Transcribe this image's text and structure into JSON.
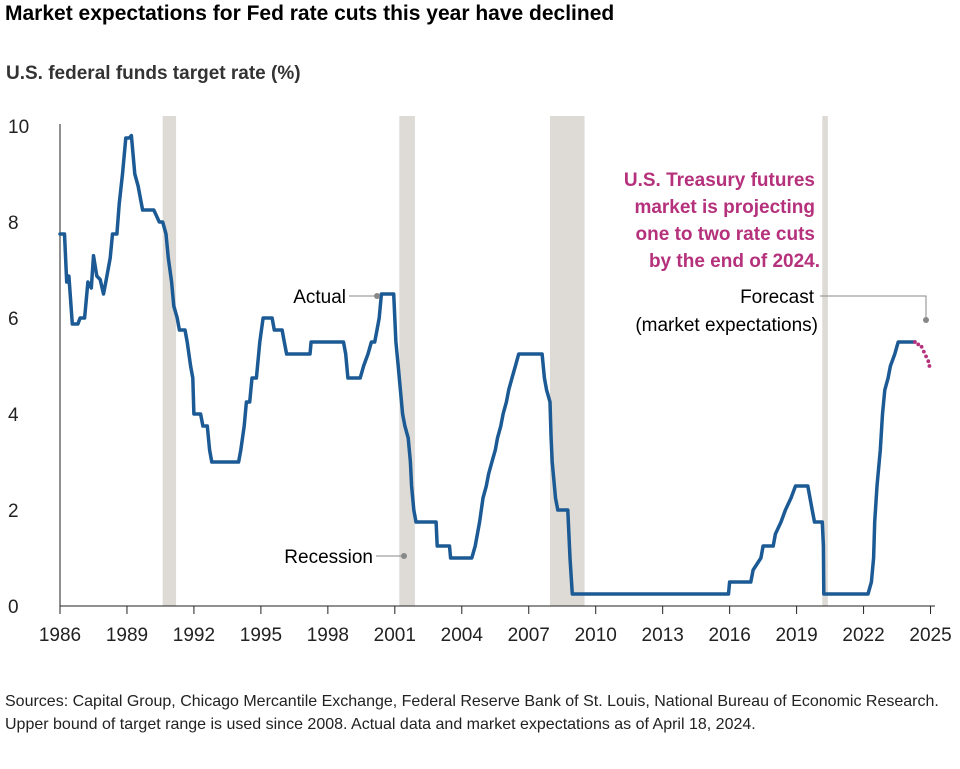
{
  "chart_data": {
    "type": "line",
    "title": "Market expectations for Fed rate cuts this year have declined",
    "ylabel": "U.S. federal funds target rate (%)",
    "xlabel": "",
    "xlim": [
      1986,
      2025.2
    ],
    "ylim": [
      0,
      10
    ],
    "x_ticks": [
      1986,
      1989,
      1992,
      1995,
      1998,
      2001,
      2004,
      2007,
      2010,
      2013,
      2016,
      2019,
      2022,
      2025
    ],
    "y_ticks": [
      0,
      2,
      4,
      6,
      8,
      10
    ],
    "grid": false,
    "recessions": [
      {
        "start": 1990.6,
        "end": 1991.2
      },
      {
        "start": 2001.2,
        "end": 2001.9
      },
      {
        "start": 2007.95,
        "end": 2009.5
      },
      {
        "start": 2020.15,
        "end": 2020.4
      }
    ],
    "series": [
      {
        "name": "Actual",
        "color": "#1b5a94",
        "points": [
          [
            1986.0,
            7.75
          ],
          [
            1986.2,
            7.75
          ],
          [
            1986.3,
            6.75
          ],
          [
            1986.4,
            6.875
          ],
          [
            1986.55,
            5.875
          ],
          [
            1986.8,
            5.875
          ],
          [
            1986.9,
            6.0
          ],
          [
            1987.1,
            6.0
          ],
          [
            1987.25,
            6.75
          ],
          [
            1987.4,
            6.625
          ],
          [
            1987.5,
            7.3
          ],
          [
            1987.65,
            6.875
          ],
          [
            1987.8,
            6.8
          ],
          [
            1987.95,
            6.5
          ],
          [
            1988.05,
            6.75
          ],
          [
            1988.25,
            7.25
          ],
          [
            1988.35,
            7.75
          ],
          [
            1988.55,
            7.75
          ],
          [
            1988.65,
            8.375
          ],
          [
            1988.8,
            9.0
          ],
          [
            1988.95,
            9.75
          ],
          [
            1989.1,
            9.75
          ],
          [
            1989.2,
            9.8
          ],
          [
            1989.35,
            9.0
          ],
          [
            1989.5,
            8.75
          ],
          [
            1989.7,
            8.25
          ],
          [
            1989.9,
            8.25
          ],
          [
            1990.2,
            8.25
          ],
          [
            1990.45,
            8.0
          ],
          [
            1990.6,
            8.0
          ],
          [
            1990.75,
            7.75
          ],
          [
            1990.85,
            7.25
          ],
          [
            1991.0,
            6.75
          ],
          [
            1991.1,
            6.25
          ],
          [
            1991.25,
            6.0
          ],
          [
            1991.35,
            5.75
          ],
          [
            1991.6,
            5.75
          ],
          [
            1991.7,
            5.5
          ],
          [
            1991.85,
            5.0
          ],
          [
            1991.95,
            4.75
          ],
          [
            1992.0,
            4.0
          ],
          [
            1992.3,
            4.0
          ],
          [
            1992.4,
            3.75
          ],
          [
            1992.6,
            3.75
          ],
          [
            1992.7,
            3.25
          ],
          [
            1992.8,
            3.0
          ],
          [
            1994.0,
            3.0
          ],
          [
            1994.1,
            3.25
          ],
          [
            1994.25,
            3.75
          ],
          [
            1994.35,
            4.25
          ],
          [
            1994.5,
            4.25
          ],
          [
            1994.6,
            4.75
          ],
          [
            1994.8,
            4.75
          ],
          [
            1994.95,
            5.5
          ],
          [
            1995.1,
            6.0
          ],
          [
            1995.5,
            6.0
          ],
          [
            1995.6,
            5.75
          ],
          [
            1995.95,
            5.75
          ],
          [
            1996.05,
            5.5
          ],
          [
            1996.15,
            5.25
          ],
          [
            1997.2,
            5.25
          ],
          [
            1997.25,
            5.5
          ],
          [
            1998.7,
            5.5
          ],
          [
            1998.8,
            5.25
          ],
          [
            1998.9,
            4.75
          ],
          [
            1999.45,
            4.75
          ],
          [
            1999.6,
            5.0
          ],
          [
            1999.8,
            5.25
          ],
          [
            1999.95,
            5.5
          ],
          [
            2000.1,
            5.5
          ],
          [
            2000.2,
            5.75
          ],
          [
            2000.3,
            6.0
          ],
          [
            2000.4,
            6.5
          ],
          [
            2000.95,
            6.5
          ],
          [
            2001.05,
            5.5
          ],
          [
            2001.15,
            5.0
          ],
          [
            2001.25,
            4.5
          ],
          [
            2001.35,
            4.0
          ],
          [
            2001.45,
            3.75
          ],
          [
            2001.6,
            3.5
          ],
          [
            2001.7,
            3.0
          ],
          [
            2001.75,
            2.5
          ],
          [
            2001.85,
            2.0
          ],
          [
            2001.95,
            1.75
          ],
          [
            2002.85,
            1.75
          ],
          [
            2002.9,
            1.25
          ],
          [
            2003.45,
            1.25
          ],
          [
            2003.5,
            1.0
          ],
          [
            2004.45,
            1.0
          ],
          [
            2004.6,
            1.25
          ],
          [
            2004.7,
            1.5
          ],
          [
            2004.8,
            1.75
          ],
          [
            2004.95,
            2.25
          ],
          [
            2005.1,
            2.5
          ],
          [
            2005.2,
            2.75
          ],
          [
            2005.35,
            3.0
          ],
          [
            2005.5,
            3.25
          ],
          [
            2005.6,
            3.5
          ],
          [
            2005.75,
            3.75
          ],
          [
            2005.85,
            4.0
          ],
          [
            2006.0,
            4.25
          ],
          [
            2006.1,
            4.5
          ],
          [
            2006.25,
            4.75
          ],
          [
            2006.4,
            5.0
          ],
          [
            2006.55,
            5.25
          ],
          [
            2007.6,
            5.25
          ],
          [
            2007.7,
            4.75
          ],
          [
            2007.8,
            4.5
          ],
          [
            2007.95,
            4.25
          ],
          [
            2008.0,
            3.5
          ],
          [
            2008.05,
            3.0
          ],
          [
            2008.2,
            2.25
          ],
          [
            2008.3,
            2.0
          ],
          [
            2008.75,
            2.0
          ],
          [
            2008.8,
            1.5
          ],
          [
            2008.85,
            1.0
          ],
          [
            2008.95,
            0.25
          ],
          [
            2015.95,
            0.25
          ],
          [
            2016.0,
            0.5
          ],
          [
            2016.95,
            0.5
          ],
          [
            2017.05,
            0.75
          ],
          [
            2017.4,
            1.0
          ],
          [
            2017.5,
            1.25
          ],
          [
            2017.95,
            1.25
          ],
          [
            2018.05,
            1.5
          ],
          [
            2018.3,
            1.75
          ],
          [
            2018.5,
            2.0
          ],
          [
            2018.75,
            2.25
          ],
          [
            2018.95,
            2.5
          ],
          [
            2019.5,
            2.5
          ],
          [
            2019.6,
            2.25
          ],
          [
            2019.7,
            2.0
          ],
          [
            2019.8,
            1.75
          ],
          [
            2020.15,
            1.75
          ],
          [
            2020.2,
            1.25
          ],
          [
            2020.22,
            0.25
          ],
          [
            2022.2,
            0.25
          ],
          [
            2022.35,
            0.5
          ],
          [
            2022.45,
            1.0
          ],
          [
            2022.5,
            1.75
          ],
          [
            2022.6,
            2.5
          ],
          [
            2022.75,
            3.25
          ],
          [
            2022.85,
            4.0
          ],
          [
            2022.95,
            4.5
          ],
          [
            2023.1,
            4.75
          ],
          [
            2023.2,
            5.0
          ],
          [
            2023.4,
            5.25
          ],
          [
            2023.55,
            5.5
          ],
          [
            2024.3,
            5.5
          ]
        ]
      },
      {
        "name": "Forecast (market expectations)",
        "color": "#b5317c",
        "points": [
          [
            2024.3,
            5.5
          ],
          [
            2024.45,
            5.45
          ],
          [
            2024.6,
            5.4
          ],
          [
            2024.7,
            5.3
          ],
          [
            2024.8,
            5.2
          ],
          [
            2024.9,
            5.1
          ],
          [
            2024.95,
            5.0
          ]
        ]
      }
    ],
    "annotations": {
      "actual": "Actual",
      "recession": "Recession",
      "forecast_line1": "Forecast",
      "forecast_line2": "(market expectations)",
      "callout": [
        "U.S. Treasury futures",
        "market is projecting",
        "one to two rate cuts",
        "by the end of 2024."
      ]
    }
  },
  "colors": {
    "actual": "#1b5a94",
    "forecast": "#b5317c",
    "callout": "#b5317c",
    "recession": "#dedbd6",
    "axis": "#222222",
    "leader": "#888888"
  },
  "source": "Sources: Capital Group, Chicago Mercantile Exchange, Federal Reserve Bank of St. Louis, National Bureau of Economic Research. Upper bound of target range is used since 2008. Actual data and market expectations as of April 18, 2024."
}
